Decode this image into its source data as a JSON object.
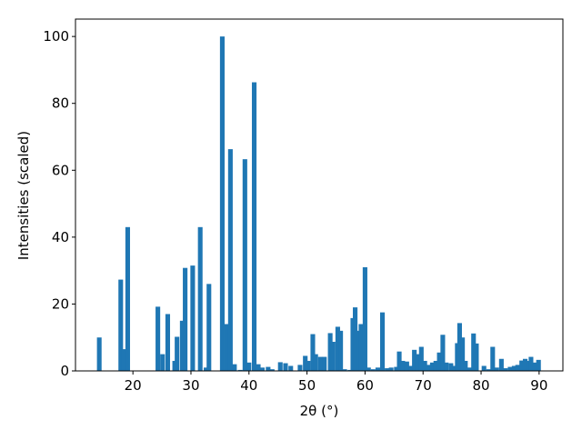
{
  "chart_data": {
    "type": "bar",
    "x_label": "2θ (°)",
    "y_label": "Intensities (scaled)",
    "color": "#1f77b4",
    "xlim": [
      10.1,
      94.1
    ],
    "ylim": [
      0,
      105.2
    ],
    "xticks": [
      20,
      30,
      40,
      50,
      60,
      70,
      80,
      90
    ],
    "yticks": [
      0,
      20,
      40,
      60,
      80,
      100
    ],
    "x": [
      14.2,
      17.9,
      18.4,
      19.1,
      24.3,
      25.1,
      26.0,
      27.2,
      27.6,
      28.5,
      29.0,
      30.3,
      31.6,
      32.6,
      33.1,
      35.4,
      36.2,
      36.8,
      37.5,
      38.5,
      39.3,
      40.0,
      40.9,
      41.6,
      42.3,
      43.3,
      44.0,
      45.4,
      46.3,
      47.2,
      48.8,
      49.7,
      50.2,
      51.0,
      51.5,
      52.3,
      53.0,
      54.0,
      54.5,
      55.3,
      55.8,
      56.5,
      57.4,
      57.9,
      58.3,
      58.9,
      59.3,
      60.0,
      60.6,
      61.4,
      62.2,
      63.0,
      63.8,
      64.5,
      65.4,
      65.9,
      66.5,
      67.2,
      67.9,
      68.5,
      69.0,
      69.7,
      70.3,
      71.0,
      71.6,
      72.2,
      72.8,
      73.4,
      74.0,
      74.8,
      75.5,
      75.9,
      76.3,
      76.8,
      77.3,
      78.0,
      78.7,
      79.2,
      80.5,
      81.3,
      82.0,
      82.7,
      83.5,
      84.2,
      85.0,
      85.7,
      86.3,
      87.0,
      87.6,
      88.1,
      88.6,
      89.2,
      89.9
    ],
    "values": [
      10,
      27.3,
      6.5,
      43,
      19.2,
      5,
      17,
      3,
      10.2,
      15,
      30.8,
      31.5,
      43,
      1,
      26,
      100,
      14,
      66.3,
      2,
      0.3,
      63.3,
      2.5,
      86.3,
      2,
      1,
      1.2,
      0.5,
      2.6,
      2.3,
      1.5,
      1.8,
      4.5,
      3,
      11,
      5,
      4.2,
      4.2,
      11.3,
      8.7,
      13.2,
      12,
      0.5,
      0.3,
      15.8,
      19,
      12,
      14,
      31,
      1,
      0.5,
      1,
      17.5,
      0.8,
      1,
      1.2,
      5.8,
      3,
      2.8,
      1.5,
      6.3,
      5,
      7.2,
      3,
      1.8,
      2.5,
      3,
      5.5,
      10.8,
      2.5,
      2.3,
      1.5,
      8.3,
      14.3,
      10,
      3,
      1,
      11.2,
      8.2,
      1.5,
      0.5,
      7.2,
      1,
      3.6,
      0.8,
      1.2,
      1.5,
      1.8,
      3.1,
      3.6,
      3,
      4.2,
      2.5,
      3.3
    ]
  }
}
